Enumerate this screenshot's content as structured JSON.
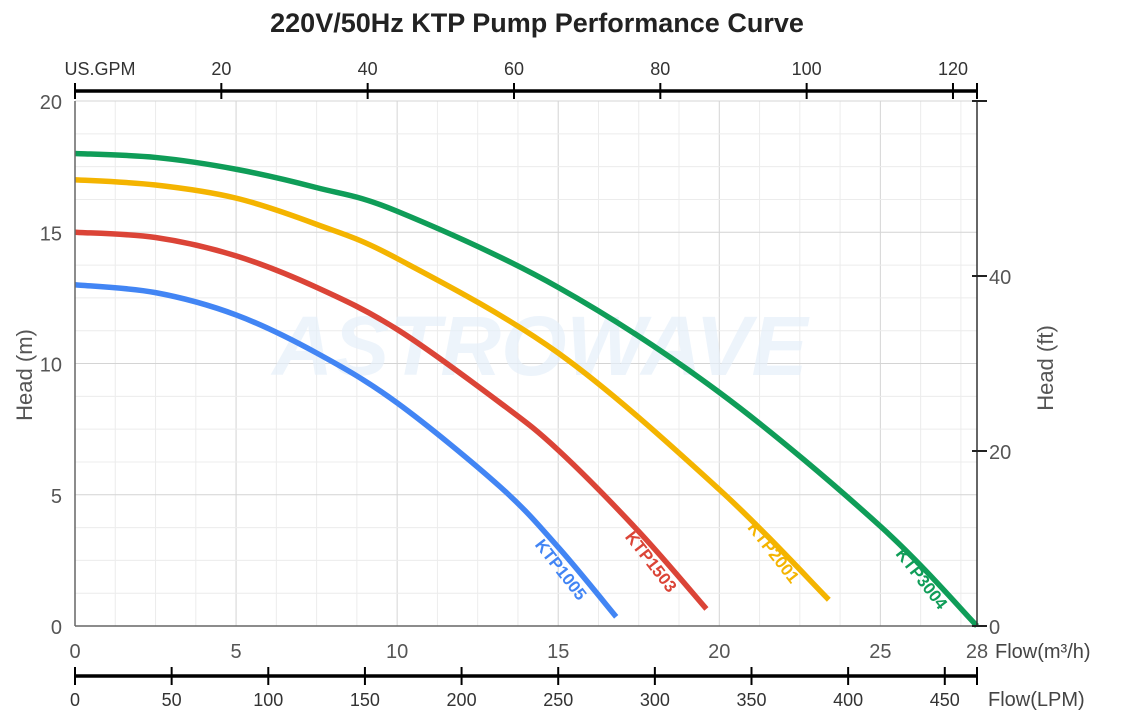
{
  "chart_data": {
    "type": "line",
    "title": "220V/50Hz KTP Pump Performance Curve",
    "xlabel": "Flow(m³/h)",
    "ylabel": "Head (m)",
    "y2label": "Head (ft)",
    "x_top_label": "US.GPM",
    "x_bottom2_label": "Flow(LPM)",
    "xlim": [
      0,
      28
    ],
    "ylim": [
      0,
      20
    ],
    "y2lim": [
      0,
      60
    ],
    "x_ticks": [
      0,
      5,
      10,
      15,
      20,
      25,
      28
    ],
    "y_ticks": [
      0,
      5,
      10,
      15,
      20
    ],
    "y2_ticks": [
      0,
      20,
      40
    ],
    "gpm_ticks": [
      20,
      40,
      60,
      80,
      100,
      120
    ],
    "lpm_ticks": [
      0,
      50,
      100,
      150,
      200,
      250,
      300,
      350,
      400,
      450
    ],
    "grid": true,
    "watermark": "ASTROWAVE",
    "series": [
      {
        "name": "KTP1005",
        "color": "#4285F4",
        "points": [
          [
            0,
            13
          ],
          [
            2.5,
            12.7
          ],
          [
            5,
            11.85
          ],
          [
            7.5,
            10.4
          ],
          [
            10,
            8.5
          ],
          [
            13.2,
            5.3
          ],
          [
            15,
            3.0
          ],
          [
            16.8,
            0.35
          ]
        ]
      },
      {
        "name": "KTP1503",
        "color": "#DB4437",
        "points": [
          [
            0,
            15
          ],
          [
            2.5,
            14.8
          ],
          [
            5,
            14.1
          ],
          [
            7.5,
            12.9
          ],
          [
            10,
            11.3
          ],
          [
            13.2,
            8.5
          ],
          [
            15,
            6.7
          ],
          [
            17.5,
            3.6
          ],
          [
            19.6,
            0.65
          ]
        ]
      },
      {
        "name": "KTP2001",
        "color": "#F4B400",
        "points": [
          [
            0,
            17
          ],
          [
            2.5,
            16.8
          ],
          [
            5,
            16.3
          ],
          [
            7.5,
            15.3
          ],
          [
            10,
            14
          ],
          [
            15,
            10.4
          ],
          [
            20,
            5.2
          ],
          [
            23.4,
            1.0
          ]
        ]
      },
      {
        "name": "KTP3004",
        "color": "#0F9D58",
        "points": [
          [
            0,
            18
          ],
          [
            2.5,
            17.85
          ],
          [
            5,
            17.4
          ],
          [
            7.5,
            16.7
          ],
          [
            10,
            15.8
          ],
          [
            15,
            12.9
          ],
          [
            20,
            8.9
          ],
          [
            25,
            3.8
          ],
          [
            28,
            0
          ]
        ]
      }
    ]
  }
}
